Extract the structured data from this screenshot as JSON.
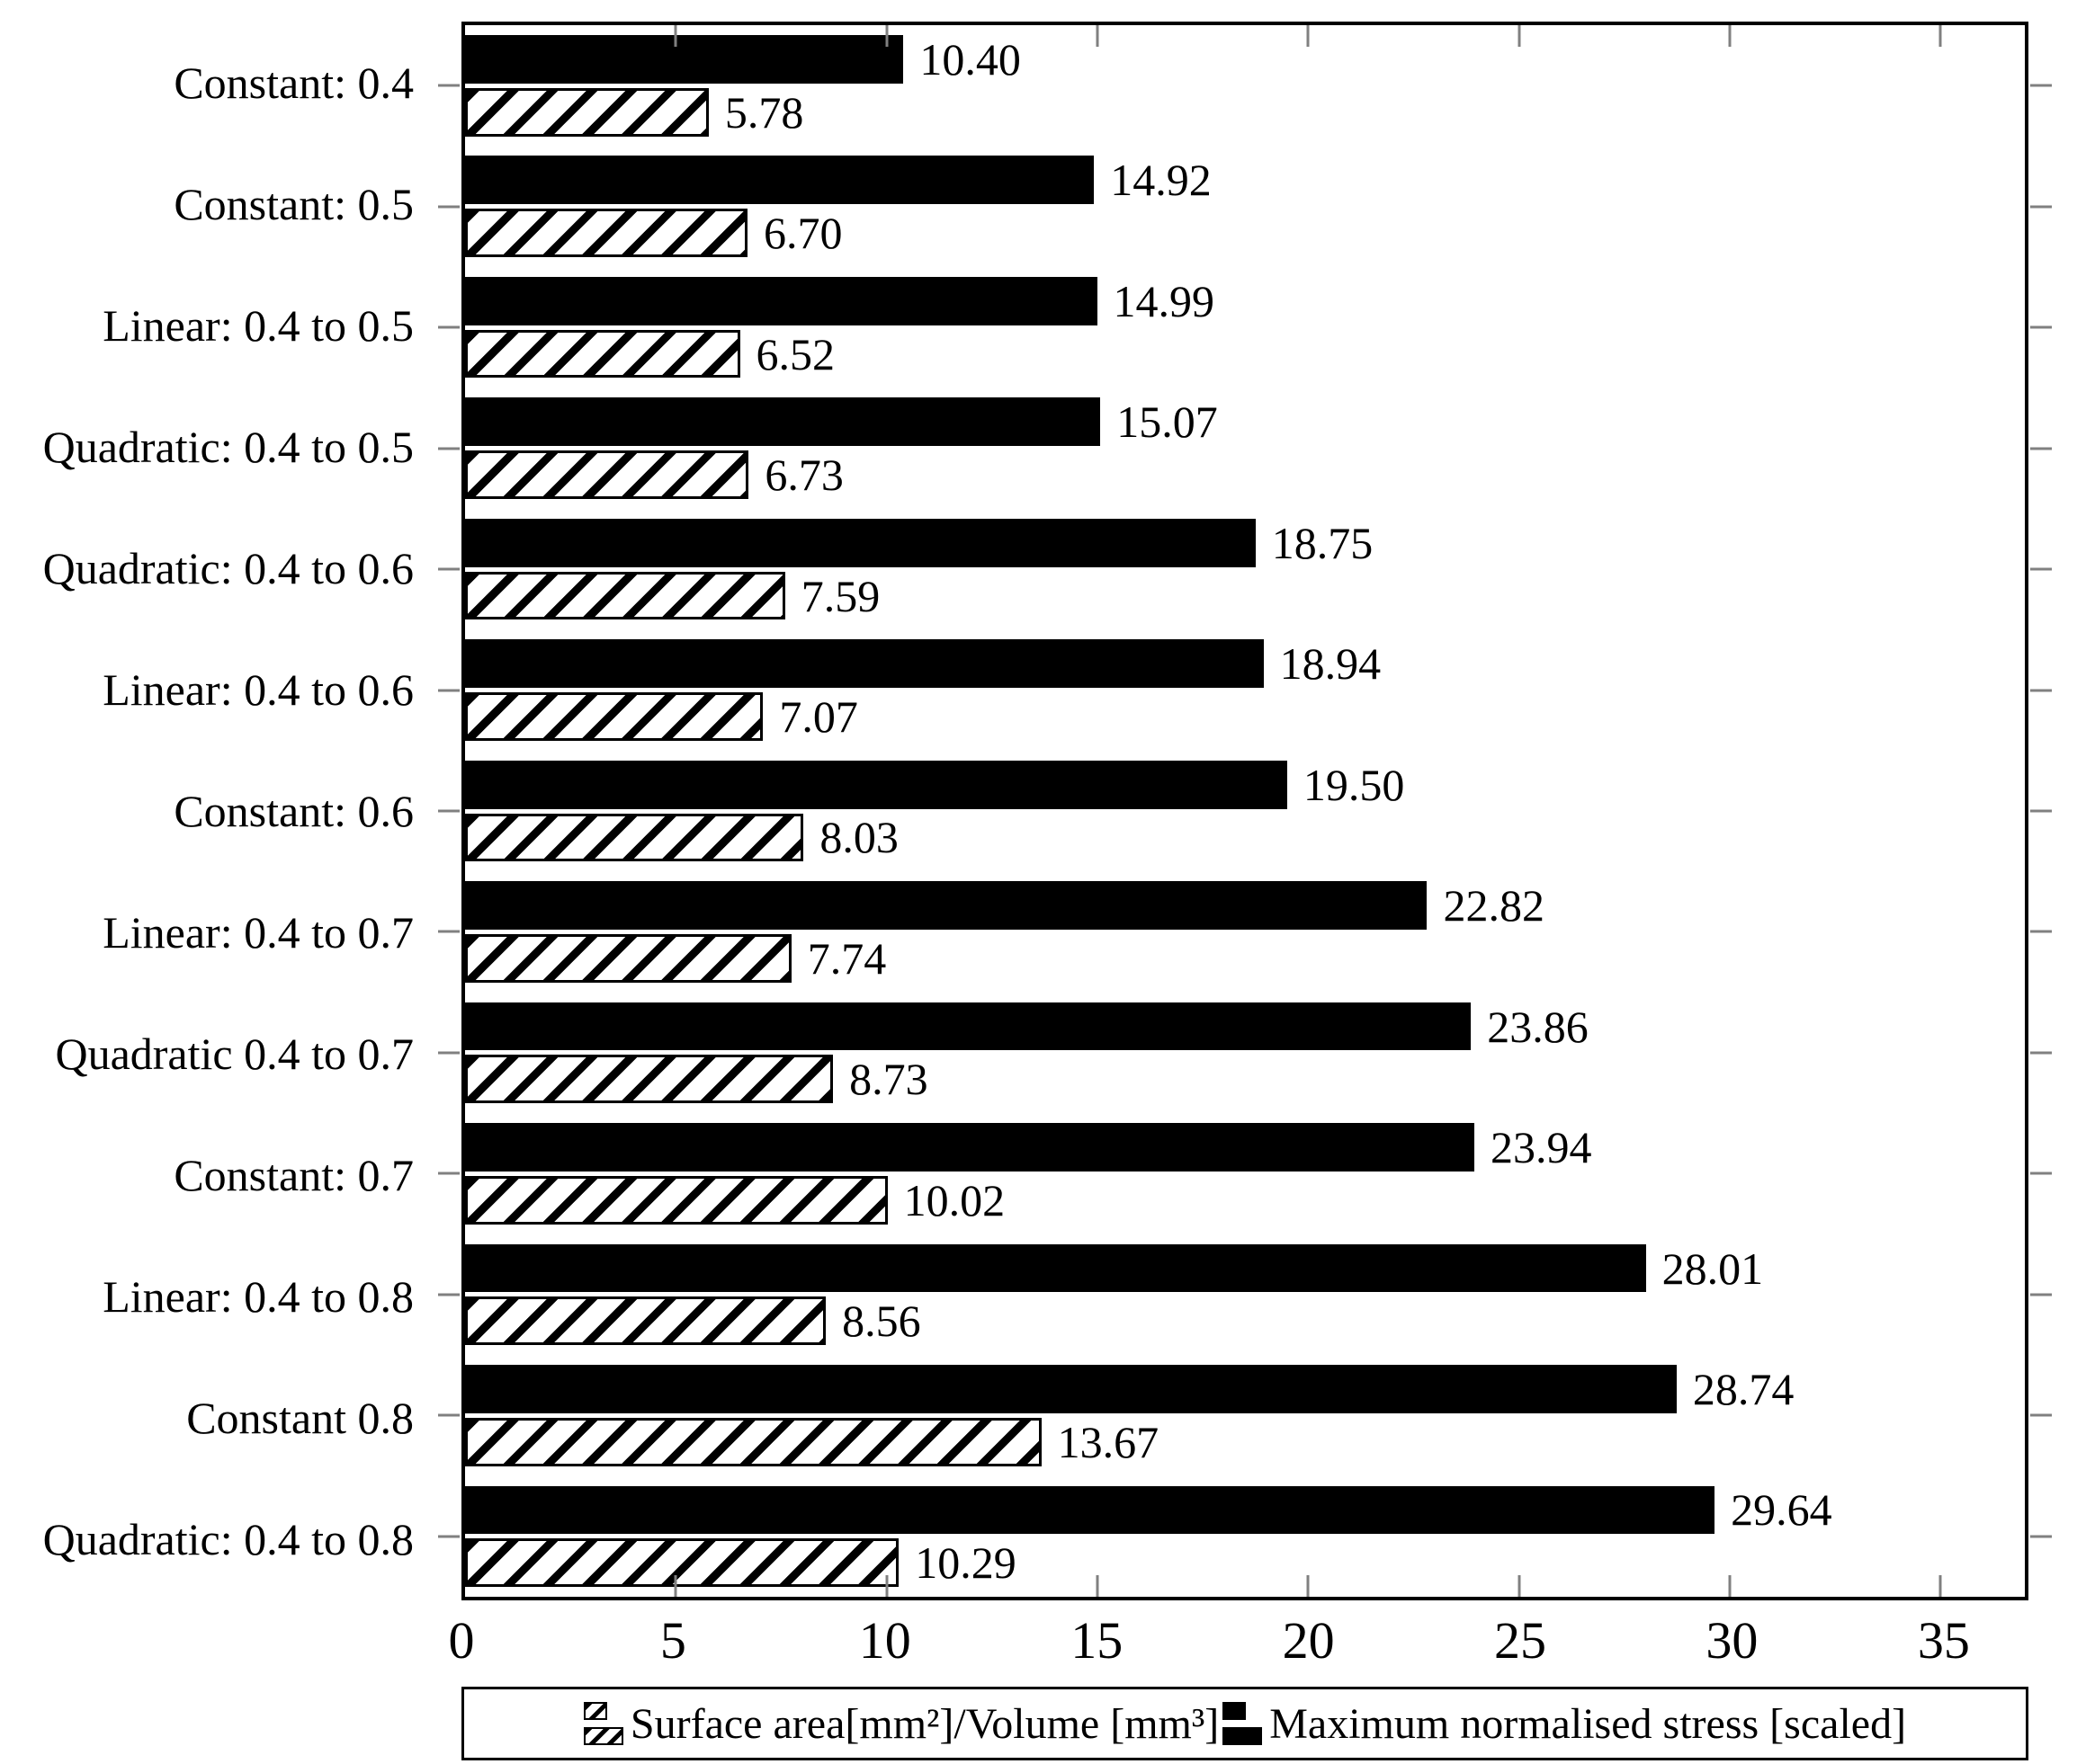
{
  "chart_data": {
    "type": "bar",
    "orientation": "horizontal",
    "title": "",
    "xlabel": "",
    "ylabel": "",
    "grid": false,
    "xlim": [
      0,
      37
    ],
    "xticks": [
      0,
      5,
      10,
      15,
      20,
      25,
      30,
      35
    ],
    "categories": [
      "Constant: 0.4",
      "Constant: 0.5",
      "Linear: 0.4 to 0.5",
      "Quadratic: 0.4 to 0.5",
      "Quadratic: 0.4 to 0.6",
      "Linear: 0.4 to 0.6",
      "Constant: 0.6",
      "Linear: 0.4 to 0.7",
      "Quadratic 0.4 to 0.7",
      "Constant: 0.7",
      "Linear: 0.4 to 0.8",
      "Constant 0.8",
      "Quadratic: 0.4 to 0.8"
    ],
    "series": [
      {
        "name": "Maximum normalised stress [scaled]",
        "style": "solid-black",
        "position_in_group": "top",
        "values": [
          10.4,
          14.92,
          14.99,
          15.07,
          18.75,
          18.94,
          19.5,
          22.82,
          23.86,
          23.94,
          28.01,
          28.74,
          29.64
        ]
      },
      {
        "name": "Surface area[mm²]/Volume [mm³]",
        "style": "hatched-diagonal",
        "position_in_group": "bottom",
        "values": [
          5.78,
          6.7,
          6.52,
          6.73,
          7.59,
          7.07,
          8.03,
          7.74,
          8.73,
          10.02,
          8.56,
          13.67,
          10.29
        ]
      }
    ],
    "value_label_format": "2-decimals",
    "legend_position": "bottom-box"
  },
  "legend": {
    "items": [
      {
        "label": "Surface area[mm²]/Volume [mm³]",
        "swatch": "hatched"
      },
      {
        "label": "Maximum normalised stress [scaled]",
        "swatch": "solid-black"
      }
    ]
  },
  "colors": {
    "bar_fill": "#000000",
    "hatch_line": "#000000",
    "background": "#ffffff",
    "tick": "#808080",
    "border": "#000000"
  }
}
